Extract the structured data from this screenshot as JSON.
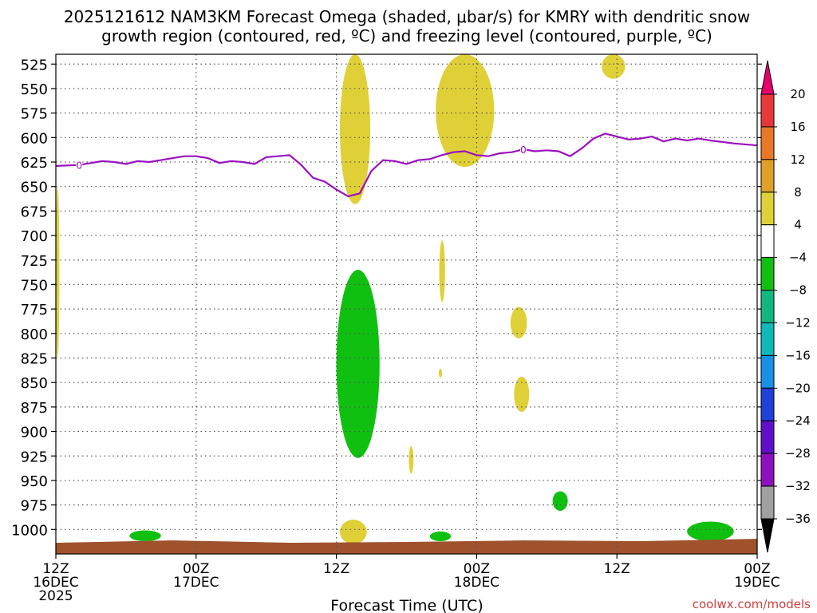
{
  "title_lines": [
    "2025121612 NAM3KM Forecast Omega (shaded, μbar/s) for KMRY with dendritic snow",
    "growth region (contoured, red, ºC) and freezing level (contoured, purple, ºC)"
  ],
  "watermark": "coolwx.com/models",
  "chart_data": {
    "type": "time-height",
    "xlabel": "Forecast Time (UTC)",
    "x_ticks": [
      {
        "hour": 0,
        "lines": [
          "12Z",
          "16DEC",
          "2025"
        ]
      },
      {
        "hour": 12,
        "lines": [
          "00Z",
          "17DEC"
        ]
      },
      {
        "hour": 24,
        "lines": [
          "12Z"
        ]
      },
      {
        "hour": 36,
        "lines": [
          "00Z",
          "18DEC"
        ]
      },
      {
        "hour": 48,
        "lines": [
          "12Z"
        ]
      },
      {
        "hour": 60,
        "lines": [
          "00Z",
          "19DEC"
        ]
      }
    ],
    "xlim": [
      0,
      60
    ],
    "ylabel": "",
    "y_ticks": [
      525,
      550,
      575,
      600,
      625,
      650,
      675,
      700,
      725,
      750,
      775,
      800,
      825,
      850,
      875,
      900,
      925,
      950,
      975,
      1000
    ],
    "y_grid": [
      525,
      550,
      575,
      600,
      625,
      650,
      675,
      700,
      725,
      750,
      775,
      800,
      825,
      850,
      875,
      900,
      925,
      950,
      975,
      1000
    ],
    "ylim_hpa": [
      515,
      1025
    ],
    "grid": true,
    "colorbar": {
      "labels": [
        "20",
        "16",
        "12",
        "8",
        "4",
        "−4",
        "−8",
        "−12",
        "−16",
        "−20",
        "−24",
        "−28",
        "−32",
        "−36"
      ],
      "colors": [
        "#e8006e",
        "#e83838",
        "#e87828",
        "#e0a028",
        "#e0d038",
        "#ffffff",
        "#10c010",
        "#10b880",
        "#10b8b8",
        "#1890e8",
        "#2040d8",
        "#6010c8",
        "#9010c0",
        "#a0a0a0",
        "#000000"
      ]
    },
    "freezing_level": {
      "label": "0",
      "color": "#9a10c0",
      "points": [
        [
          0,
          629
        ],
        [
          2,
          628
        ],
        [
          3,
          626
        ],
        [
          4,
          624
        ],
        [
          5,
          625
        ],
        [
          6,
          627
        ],
        [
          7,
          624
        ],
        [
          8,
          625
        ],
        [
          9,
          623
        ],
        [
          10,
          621
        ],
        [
          11,
          619
        ],
        [
          12,
          619
        ],
        [
          13,
          621
        ],
        [
          14,
          626
        ],
        [
          15,
          624
        ],
        [
          16,
          625
        ],
        [
          17,
          627
        ],
        [
          18,
          620
        ],
        [
          19,
          619
        ],
        [
          20,
          618
        ],
        [
          21,
          628
        ],
        [
          22,
          641
        ],
        [
          23,
          645
        ],
        [
          24,
          653
        ],
        [
          25,
          660
        ],
        [
          26,
          657
        ],
        [
          27,
          634
        ],
        [
          28,
          623
        ],
        [
          29,
          624
        ],
        [
          30,
          627
        ],
        [
          31,
          623
        ],
        [
          32,
          622
        ],
        [
          33,
          618
        ],
        [
          34,
          615
        ],
        [
          35,
          614
        ],
        [
          36,
          618
        ],
        [
          37,
          619
        ],
        [
          38,
          616
        ],
        [
          39,
          615
        ],
        [
          40,
          612
        ],
        [
          41,
          614
        ],
        [
          42,
          613
        ],
        [
          43,
          614
        ],
        [
          44,
          619
        ],
        [
          45,
          611
        ],
        [
          46,
          601
        ],
        [
          47,
          596
        ],
        [
          48,
          599
        ],
        [
          49,
          602
        ],
        [
          50,
          601
        ],
        [
          51,
          599
        ],
        [
          52,
          604
        ],
        [
          53,
          601
        ],
        [
          54,
          603
        ],
        [
          55,
          601
        ],
        [
          56,
          603
        ],
        [
          58,
          606
        ],
        [
          60,
          608
        ]
      ]
    },
    "omega_regions": [
      {
        "value_range": [
          4,
          8
        ],
        "color": "#e0d038",
        "hours": [
          0,
          0.3
        ],
        "p_hpa": [
          650,
          825
        ]
      },
      {
        "value_range": [
          4,
          8
        ],
        "color": "#e0d038",
        "hours": [
          24.3,
          26.9
        ],
        "p_hpa": [
          515,
          668
        ]
      },
      {
        "value_range": [
          4,
          8
        ],
        "color": "#e0d038",
        "hours": [
          32.5,
          37.5
        ],
        "p_hpa": [
          515,
          630
        ]
      },
      {
        "value_range": [
          4,
          8
        ],
        "color": "#e0d038",
        "hours": [
          46.7,
          48.7
        ],
        "p_hpa": [
          515,
          540
        ]
      },
      {
        "value_range": [
          4,
          8
        ],
        "color": "#e0d038",
        "hours": [
          32.8,
          33.3
        ],
        "p_hpa": [
          705,
          768
        ]
      },
      {
        "value_range": [
          4,
          8
        ],
        "color": "#e0d038",
        "hours": [
          32.8,
          33.0
        ],
        "p_hpa": [
          836,
          845
        ]
      },
      {
        "value_range": [
          4,
          8
        ],
        "color": "#e0d038",
        "hours": [
          38.9,
          40.3
        ],
        "p_hpa": [
          773,
          805
        ]
      },
      {
        "value_range": [
          4,
          8
        ],
        "color": "#e0d038",
        "hours": [
          39.2,
          40.5
        ],
        "p_hpa": [
          844,
          880
        ]
      },
      {
        "value_range": [
          4,
          8
        ],
        "color": "#e0d038",
        "hours": [
          30.2,
          30.6
        ],
        "p_hpa": [
          915,
          943
        ]
      },
      {
        "value_range": [
          4,
          8
        ],
        "color": "#e0d038",
        "hours": [
          24.3,
          26.6
        ],
        "p_hpa": [
          990,
          1015
        ]
      },
      {
        "value_range": [
          -8,
          -4
        ],
        "color": "#10c010",
        "hours": [
          24.0,
          27.7
        ],
        "p_hpa": [
          735,
          927
        ]
      },
      {
        "value_range": [
          -8,
          -4
        ],
        "color": "#10c010",
        "hours": [
          42.5,
          43.8
        ],
        "p_hpa": [
          961,
          981
        ]
      },
      {
        "value_range": [
          -8,
          -4
        ],
        "color": "#10c010",
        "hours": [
          6.3,
          9.0
        ],
        "p_hpa": [
          1001,
          1012
        ]
      },
      {
        "value_range": [
          -8,
          -4
        ],
        "color": "#10c010",
        "hours": [
          32.0,
          33.8
        ],
        "p_hpa": [
          1002,
          1012
        ]
      },
      {
        "value_range": [
          -8,
          -4
        ],
        "color": "#10c010",
        "hours": [
          54.0,
          58.0
        ],
        "p_hpa": [
          992,
          1012
        ]
      }
    ],
    "terrain": {
      "color": "#a0522d",
      "p_hpa_top": 1012
    }
  }
}
